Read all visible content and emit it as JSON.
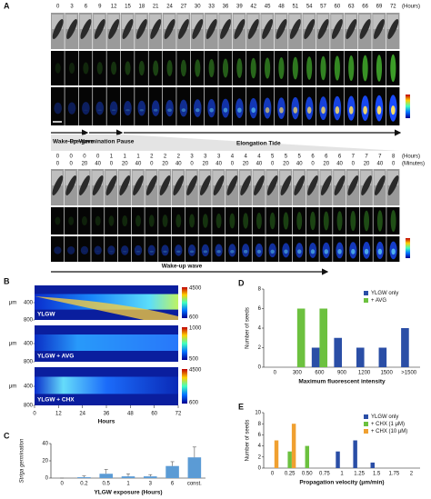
{
  "panel_a": {
    "label": "A",
    "top_hours": [
      0,
      3,
      6,
      9,
      12,
      15,
      18,
      21,
      24,
      27,
      30,
      33,
      36,
      39,
      42,
      45,
      48,
      51,
      54,
      57,
      60,
      63,
      66,
      69,
      72
    ],
    "top_unit": "(Hours)",
    "phases": [
      "Wake-up Wave",
      "Pre-germination Pause",
      "Elongation Tide"
    ],
    "hours": [
      0,
      0,
      0,
      0,
      1,
      1,
      1,
      2,
      2,
      2,
      3,
      3,
      3,
      4,
      4,
      4,
      5,
      5,
      5,
      6,
      6,
      6,
      7,
      7,
      7,
      8
    ],
    "hours_unit": "(Hours)",
    "minutes": [
      0,
      0,
      20,
      40,
      0,
      20,
      40,
      0,
      20,
      40,
      0,
      20,
      40,
      0,
      20,
      40,
      0,
      20,
      40,
      0,
      20,
      40,
      0,
      20,
      40,
      0
    ],
    "minutes_unit": "(Minutes)",
    "bottom_label": "Wake-up wave"
  },
  "panel_b": {
    "label": "B",
    "type": "heatmap",
    "conditions": [
      {
        "name": "YLGW",
        "colorbar": [
          4500,
          600
        ]
      },
      {
        "name": "YLGW + AVG",
        "colorbar": [
          1000,
          500
        ]
      },
      {
        "name": "YLGW + CHX",
        "colorbar": [
          4500,
          600
        ]
      }
    ],
    "ylabel": "μm",
    "ylim": [
      0,
      800
    ],
    "yticks": [
      400,
      800
    ],
    "xlabel": "Hours",
    "xlim": [
      0,
      72
    ],
    "xticks": [
      0,
      12,
      24,
      36,
      48,
      60,
      72
    ]
  },
  "chart_data": [
    {
      "panel": "C",
      "type": "bar",
      "ylabel": "Striga germination",
      "xlabel": "YLGW exposure (Hours)",
      "categories": [
        "0",
        "0.2",
        "0.5",
        "1",
        "3",
        "6",
        "const."
      ],
      "values": [
        0,
        1,
        5,
        2,
        2,
        14,
        24
      ],
      "errors": [
        0,
        1.5,
        5,
        3,
        2,
        5,
        12
      ],
      "color": "#5b9bd5",
      "ylim": [
        0,
        40
      ],
      "yticks": [
        0,
        20,
        40
      ]
    },
    {
      "panel": "D",
      "type": "grouped-bar",
      "ylabel": "Number of seeds",
      "xlabel": "Maximum fluorescent intensity",
      "categories": [
        "0",
        "300",
        "600",
        "900",
        "1200",
        "1500",
        ">1500"
      ],
      "series": [
        {
          "name": "YLGW only",
          "color": "#2a4ea6",
          "values": [
            0,
            0,
            2,
            3,
            2,
            2,
            4
          ]
        },
        {
          "name": "+ AVG",
          "color": "#6cc13f",
          "values": [
            0,
            6,
            6,
            0,
            0,
            0,
            0
          ]
        }
      ],
      "ylim": [
        0,
        8
      ],
      "yticks": [
        0,
        2,
        4,
        6,
        8
      ],
      "legend": "upper-right"
    },
    {
      "panel": "E",
      "type": "grouped-bar",
      "ylabel": "Number of seeds",
      "xlabel": "Propagation velocity (μm/min)",
      "categories": [
        "0",
        "0.25",
        "0.50",
        "0.75",
        "1",
        "1.25",
        "1.5",
        "1.75",
        "2"
      ],
      "series": [
        {
          "name": "YLGW only",
          "color": "#2a4ea6",
          "values": [
            0,
            0,
            0,
            0,
            3,
            5,
            1,
            0,
            0
          ]
        },
        {
          "name": "+ CHX (1 μM)",
          "color": "#6cc13f",
          "values": [
            0,
            3,
            4,
            0,
            0,
            0,
            0,
            0,
            0
          ]
        },
        {
          "name": "+ CHX (10 μM)",
          "color": "#f0a030",
          "values": [
            5,
            8,
            0,
            0,
            0,
            0,
            0,
            0,
            0
          ]
        }
      ],
      "ylim": [
        0,
        10
      ],
      "yticks": [
        0,
        2,
        4,
        6,
        8,
        10
      ],
      "legend": "upper-right"
    }
  ]
}
